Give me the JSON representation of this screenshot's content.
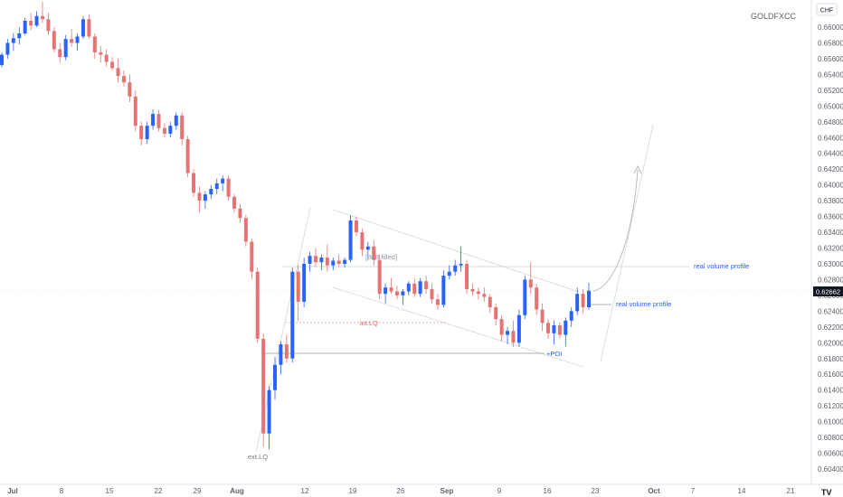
{
  "symbol": "GOLDFXCC",
  "currency": "CHF",
  "price_label": "0.62662",
  "annotations": {
    "imb": "IMB filled",
    "int_lq": "int.LQ",
    "poi": "+POI",
    "ext_lq": "ext.LQ",
    "rvp_upper": "real volume profile",
    "rvp_lower": "real volume profile"
  },
  "colors": {
    "up": "#2962ff",
    "down": "#e57373",
    "price_badge": "#131722",
    "text": "#5d606b",
    "annotation_blue": "#2962ff",
    "annotation_red": "#e0605f",
    "annotation_gray": "#787b86"
  },
  "chart_data": {
    "type": "candlestick",
    "symbol": "GOLDFXCC",
    "currency": "CHF",
    "ylim": [
      0.6035,
      0.6625
    ],
    "y_ticks": [
      "0.66000",
      "0.65800",
      "0.65600",
      "0.65400",
      "0.65200",
      "0.65000",
      "0.64800",
      "0.64600",
      "0.64400",
      "0.64200",
      "0.64000",
      "0.63800",
      "0.63600",
      "0.63400",
      "0.63200",
      "0.63000",
      "0.62800",
      "0.62600",
      "0.62400",
      "0.62200",
      "0.62000",
      "0.61800",
      "0.61600",
      "0.61400",
      "0.61200",
      "0.61000",
      "0.60800",
      "0.60600",
      "0.60400"
    ],
    "x_ticks": [
      "Jul",
      "8",
      "15",
      "22",
      "29",
      "Aug",
      "12",
      "19",
      "26",
      "Sep",
      "9",
      "16",
      "23",
      "Oct",
      "7",
      "14",
      "21"
    ],
    "candles_dates": "Jul 1 - Sep 23",
    "candles": [
      [
        0.6552,
        0.6568,
        0.6549,
        0.6565
      ],
      [
        0.6565,
        0.6585,
        0.656,
        0.658
      ],
      [
        0.658,
        0.6592,
        0.657,
        0.6586
      ],
      [
        0.6586,
        0.66,
        0.6578,
        0.6592
      ],
      [
        0.6592,
        0.6612,
        0.659,
        0.6608
      ],
      [
        0.6608,
        0.6618,
        0.6596,
        0.6602
      ],
      [
        0.6602,
        0.662,
        0.66,
        0.6614
      ],
      [
        0.6614,
        0.6632,
        0.6605,
        0.661
      ],
      [
        0.661,
        0.6618,
        0.659,
        0.6595
      ],
      [
        0.6595,
        0.66,
        0.6568,
        0.6572
      ],
      [
        0.6572,
        0.658,
        0.6555,
        0.6562
      ],
      [
        0.6562,
        0.659,
        0.6558,
        0.6585
      ],
      [
        0.6585,
        0.6598,
        0.6575,
        0.658
      ],
      [
        0.658,
        0.6592,
        0.657,
        0.6588
      ],
      [
        0.6588,
        0.6614,
        0.6585,
        0.661
      ],
      [
        0.661,
        0.6616,
        0.6585,
        0.6588
      ],
      [
        0.6588,
        0.6592,
        0.656,
        0.6568
      ],
      [
        0.6568,
        0.6576,
        0.6555,
        0.6565
      ],
      [
        0.6565,
        0.6572,
        0.655,
        0.6556
      ],
      [
        0.6556,
        0.6562,
        0.6545,
        0.6548
      ],
      [
        0.6548,
        0.656,
        0.653,
        0.6538
      ],
      [
        0.6538,
        0.6545,
        0.6525,
        0.653
      ],
      [
        0.653,
        0.654,
        0.6505,
        0.6512
      ],
      [
        0.6512,
        0.652,
        0.6468,
        0.6475
      ],
      [
        0.6475,
        0.648,
        0.645,
        0.6458
      ],
      [
        0.6458,
        0.648,
        0.6452,
        0.6475
      ],
      [
        0.6475,
        0.6496,
        0.647,
        0.649
      ],
      [
        0.649,
        0.6495,
        0.6468,
        0.6472
      ],
      [
        0.6472,
        0.6478,
        0.646,
        0.6465
      ],
      [
        0.6465,
        0.648,
        0.646,
        0.6475
      ],
      [
        0.6475,
        0.6492,
        0.647,
        0.6488
      ],
      [
        0.6488,
        0.6492,
        0.645,
        0.6458
      ],
      [
        0.6458,
        0.6462,
        0.641,
        0.6415
      ],
      [
        0.6415,
        0.642,
        0.6385,
        0.639
      ],
      [
        0.639,
        0.6398,
        0.6365,
        0.638
      ],
      [
        0.638,
        0.6392,
        0.637,
        0.6388
      ],
      [
        0.6388,
        0.64,
        0.6382,
        0.6395
      ],
      [
        0.6395,
        0.6408,
        0.6388,
        0.6402
      ],
      [
        0.6402,
        0.6412,
        0.6392,
        0.6408
      ],
      [
        0.6408,
        0.6412,
        0.638,
        0.6385
      ],
      [
        0.6385,
        0.6388,
        0.6365,
        0.637
      ],
      [
        0.637,
        0.6376,
        0.6352,
        0.6358
      ],
      [
        0.6358,
        0.6362,
        0.6322,
        0.6328
      ],
      [
        0.6328,
        0.6332,
        0.628,
        0.629
      ],
      [
        0.629,
        0.6295,
        0.62,
        0.6205
      ],
      [
        0.6205,
        0.6212,
        0.6068,
        0.6085
      ],
      [
        0.6085,
        0.6145,
        0.6065,
        0.614
      ],
      [
        0.614,
        0.6182,
        0.6128,
        0.6172
      ],
      [
        0.6172,
        0.6202,
        0.616,
        0.6198
      ],
      [
        0.6198,
        0.621,
        0.6175,
        0.618
      ],
      [
        0.618,
        0.6295,
        0.6175,
        0.629
      ],
      [
        0.629,
        0.6298,
        0.6228,
        0.6252
      ],
      [
        0.6252,
        0.6308,
        0.6245,
        0.63
      ],
      [
        0.63,
        0.6315,
        0.629,
        0.631
      ],
      [
        0.631,
        0.632,
        0.6296,
        0.6302
      ],
      [
        0.6302,
        0.6312,
        0.6292,
        0.6308
      ],
      [
        0.6308,
        0.6325,
        0.629,
        0.6298
      ],
      [
        0.6298,
        0.6308,
        0.6292,
        0.6304
      ],
      [
        0.6304,
        0.6312,
        0.6296,
        0.63
      ],
      [
        0.63,
        0.6308,
        0.6295,
        0.6305
      ],
      [
        0.6305,
        0.6362,
        0.6302,
        0.6355
      ],
      [
        0.6355,
        0.636,
        0.6335,
        0.634
      ],
      [
        0.634,
        0.6345,
        0.631,
        0.6318
      ],
      [
        0.6318,
        0.6328,
        0.6305,
        0.6322
      ],
      [
        0.6322,
        0.633,
        0.6298,
        0.6305
      ],
      [
        0.6305,
        0.6312,
        0.6255,
        0.6262
      ],
      [
        0.6262,
        0.6275,
        0.625,
        0.627
      ],
      [
        0.627,
        0.6282,
        0.6262,
        0.6265
      ],
      [
        0.6265,
        0.6272,
        0.6255,
        0.626
      ],
      [
        0.626,
        0.6268,
        0.6248,
        0.6265
      ],
      [
        0.6265,
        0.6278,
        0.626,
        0.6275
      ],
      [
        0.6275,
        0.6282,
        0.6258,
        0.6262
      ],
      [
        0.6262,
        0.6282,
        0.6258,
        0.6278
      ],
      [
        0.6278,
        0.6285,
        0.6262,
        0.6268
      ],
      [
        0.6268,
        0.6275,
        0.625,
        0.6255
      ],
      [
        0.6255,
        0.6262,
        0.6242,
        0.6248
      ],
      [
        0.6248,
        0.6292,
        0.6245,
        0.6285
      ],
      [
        0.6285,
        0.6298,
        0.628,
        0.629
      ],
      [
        0.629,
        0.6305,
        0.6285,
        0.6298
      ],
      [
        0.6298,
        0.6322,
        0.629,
        0.63
      ],
      [
        0.63,
        0.6305,
        0.6262,
        0.6268
      ],
      [
        0.6268,
        0.6275,
        0.626,
        0.6265
      ],
      [
        0.6265,
        0.627,
        0.6255,
        0.6262
      ],
      [
        0.6262,
        0.627,
        0.6252,
        0.6258
      ],
      [
        0.6258,
        0.6262,
        0.6238,
        0.6245
      ],
      [
        0.6245,
        0.625,
        0.6222,
        0.623
      ],
      [
        0.623,
        0.6235,
        0.6202,
        0.621
      ],
      [
        0.621,
        0.622,
        0.6198,
        0.6215
      ],
      [
        0.6215,
        0.6228,
        0.6195,
        0.62
      ],
      [
        0.62,
        0.6242,
        0.6195,
        0.6235
      ],
      [
        0.6235,
        0.6285,
        0.623,
        0.628
      ],
      [
        0.628,
        0.6302,
        0.6262,
        0.627
      ],
      [
        0.627,
        0.6275,
        0.6235,
        0.6242
      ],
      [
        0.6242,
        0.625,
        0.6215,
        0.6225
      ],
      [
        0.6225,
        0.623,
        0.6205,
        0.6212
      ],
      [
        0.6212,
        0.6228,
        0.6198,
        0.6222
      ],
      [
        0.6222,
        0.6226,
        0.6205,
        0.621
      ],
      [
        0.621,
        0.6232,
        0.6195,
        0.6228
      ],
      [
        0.6228,
        0.6245,
        0.622,
        0.624
      ],
      [
        0.624,
        0.627,
        0.6235,
        0.6262
      ],
      [
        0.6262,
        0.6268,
        0.6238,
        0.6245
      ],
      [
        0.6245,
        0.6276,
        0.6242,
        0.6266
      ]
    ]
  }
}
